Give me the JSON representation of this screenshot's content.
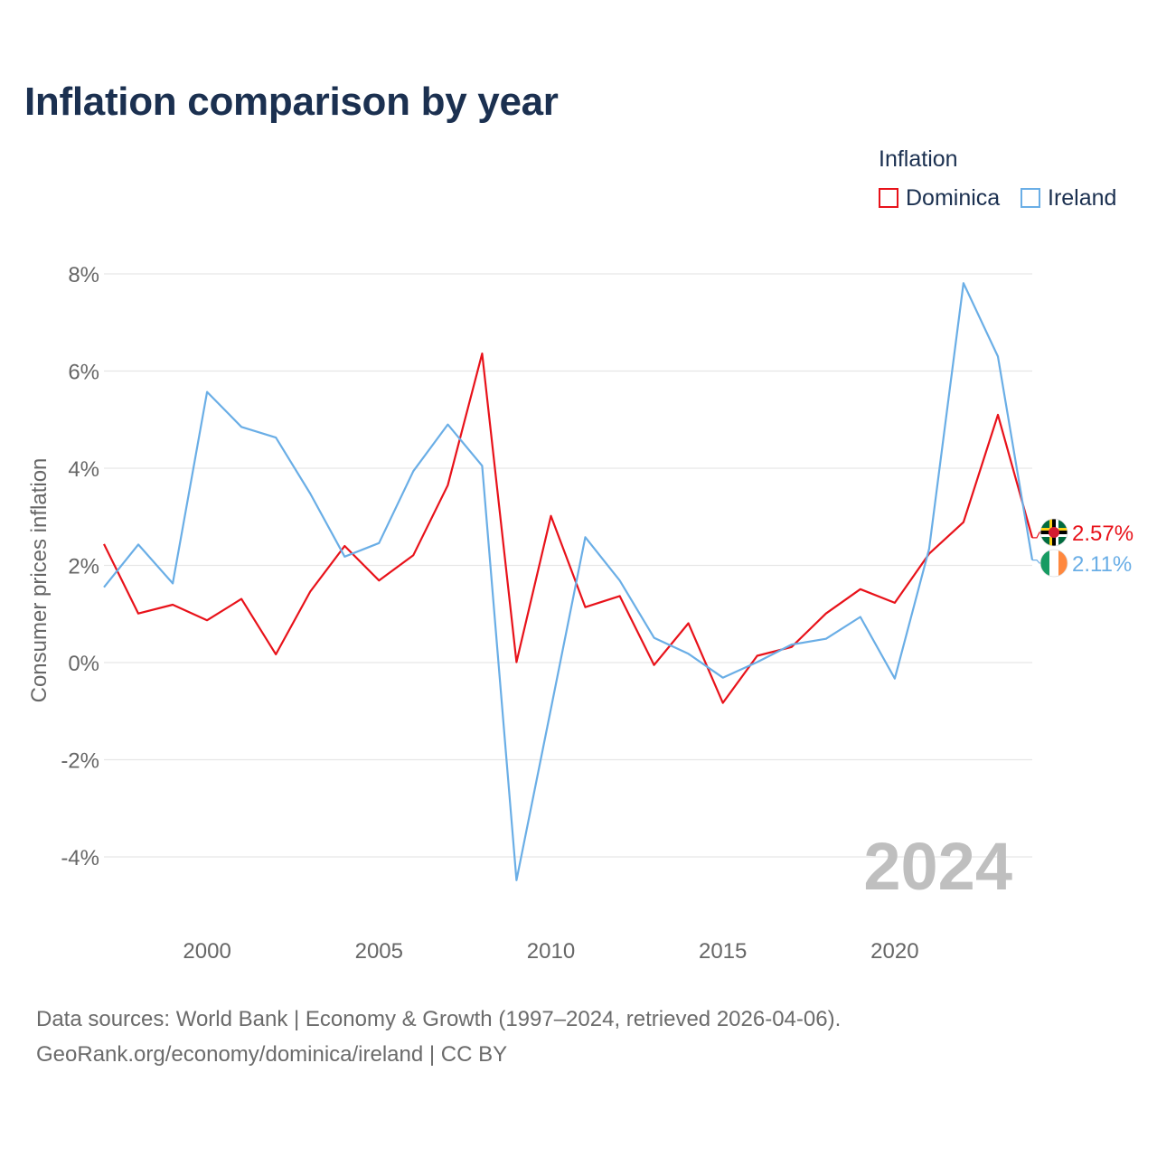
{
  "title": "Inflation comparison by year",
  "legend": {
    "title": "Inflation",
    "items": [
      {
        "label": "Dominica",
        "color": "#e8121a"
      },
      {
        "label": "Ireland",
        "color": "#6aaee6"
      }
    ]
  },
  "year_watermark": "2024",
  "source": {
    "line1": "Data sources: World Bank | Economy & Growth (1997–2024, retrieved 2026-04-06).",
    "line2": "GeoRank.org/economy/dominica/ireland | CC BY"
  },
  "flag_icons": {
    "Dominica": "dominica-flag-icon",
    "Ireland": "ireland-flag-icon"
  },
  "chart_data": {
    "type": "line",
    "title": "Inflation comparison by year",
    "xlabel": "",
    "ylabel": "Consumer prices inflation",
    "xlim": [
      1997,
      2024
    ],
    "ylim": [
      -4.8,
      8
    ],
    "y_ticks": [
      8,
      6,
      4,
      2,
      0,
      -2,
      -4
    ],
    "y_tick_labels": [
      "8%",
      "6%",
      "4%",
      "2%",
      "0%",
      "-2%",
      "-4%"
    ],
    "x_ticks": [
      2000,
      2005,
      2010,
      2015,
      2020
    ],
    "x_tick_labels": [
      "2000",
      "2005",
      "2010",
      "2015",
      "2020"
    ],
    "grid": true,
    "legend_position": "top-right",
    "x": [
      1997,
      1998,
      1999,
      2000,
      2001,
      2002,
      2003,
      2004,
      2005,
      2006,
      2007,
      2008,
      2009,
      2010,
      2011,
      2012,
      2013,
      2014,
      2015,
      2016,
      2017,
      2018,
      2019,
      2020,
      2021,
      2022,
      2023,
      2024
    ],
    "series": [
      {
        "name": "Dominica",
        "color": "#e8121a",
        "end_label": "2.57%",
        "values": [
          2.44,
          1.01,
          1.19,
          0.87,
          1.31,
          0.17,
          1.46,
          2.4,
          1.69,
          2.21,
          3.65,
          6.36,
          0.01,
          3.02,
          1.14,
          1.37,
          -0.05,
          0.81,
          -0.83,
          0.14,
          0.32,
          1.01,
          1.51,
          1.23,
          2.24,
          2.89,
          5.1,
          2.57
        ]
      },
      {
        "name": "Ireland",
        "color": "#6aaee6",
        "end_label": "2.11%",
        "values": [
          1.55,
          2.43,
          1.63,
          5.57,
          4.85,
          4.63,
          3.48,
          2.18,
          2.46,
          3.94,
          4.9,
          4.05,
          -4.48,
          -0.95,
          2.58,
          1.69,
          0.51,
          0.18,
          -0.31,
          0.01,
          0.37,
          0.49,
          0.94,
          -0.33,
          2.34,
          7.81,
          6.3,
          2.11
        ]
      }
    ]
  }
}
